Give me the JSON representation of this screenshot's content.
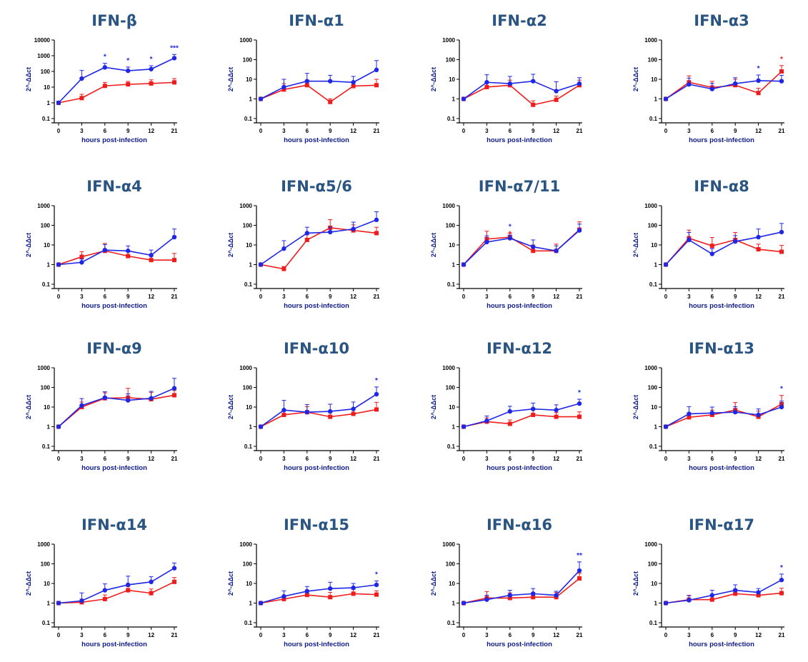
{
  "colors": {
    "blue": "#1f27e6",
    "red": "#f01c1c",
    "title": "#2a5582",
    "axis_label": "#0d1a8c"
  },
  "chart_data": [
    {
      "type": "line",
      "title": "IFN-β",
      "ylabel": "2^-ΔΔct",
      "xlabel": "hours post-infection",
      "x_ticks": [
        "0",
        "3",
        "6",
        "9",
        "12",
        "21"
      ],
      "y_ticks": [
        "0.1",
        "1",
        "10",
        "100",
        "1000",
        "10000"
      ],
      "ylim": [
        0.1,
        10000
      ],
      "yscale": "log",
      "series": [
        {
          "color": "blue",
          "values": [
            1,
            35,
            180,
            110,
            140,
            700
          ],
          "err": [
            null,
            80,
            150,
            80,
            90,
            500
          ]
        },
        {
          "color": "red",
          "values": [
            1,
            2,
            12,
            15,
            17,
            20
          ],
          "err": [
            null,
            1.5,
            8,
            8,
            12,
            15
          ]
        }
      ],
      "annotations": [
        {
          "x": "6",
          "text": "*",
          "color": "blue"
        },
        {
          "x": "9",
          "text": "*",
          "color": "blue"
        },
        {
          "x": "12",
          "text": "*",
          "color": "blue"
        },
        {
          "x": "21",
          "text": "***",
          "color": "blue"
        }
      ]
    },
    {
      "type": "line",
      "title": "IFN-α1",
      "ylabel": "2^-ΔΔct",
      "xlabel": "hours post-infection",
      "x_ticks": [
        "0",
        "3",
        "6",
        "9",
        "12",
        "21"
      ],
      "y_ticks": [
        "0.1",
        "1",
        "10",
        "100",
        "1000"
      ],
      "ylim": [
        0.1,
        1000
      ],
      "yscale": "log",
      "series": [
        {
          "color": "blue",
          "values": [
            1,
            4,
            8,
            8,
            7,
            30
          ],
          "err": [
            null,
            6,
            12,
            8,
            7,
            60
          ]
        },
        {
          "color": "red",
          "values": [
            1,
            3,
            5,
            0.7,
            4.5,
            5
          ],
          "err": [
            null,
            3,
            4,
            0.3,
            3,
            5
          ]
        }
      ],
      "annotations": []
    },
    {
      "type": "line",
      "title": "IFN-α2",
      "ylabel": "2^-ΔΔct",
      "xlabel": "hours post-infection",
      "x_ticks": [
        "0",
        "3",
        "6",
        "9",
        "12",
        "21"
      ],
      "y_ticks": [
        "0.1",
        "1",
        "10",
        "100",
        "1000"
      ],
      "ylim": [
        0.1,
        1000
      ],
      "yscale": "log",
      "series": [
        {
          "color": "blue",
          "values": [
            1,
            7,
            6,
            8,
            2.5,
            6
          ],
          "err": [
            null,
            10,
            8,
            10,
            5,
            6
          ]
        },
        {
          "color": "red",
          "values": [
            1,
            4,
            5,
            0.5,
            0.9,
            5
          ],
          "err": [
            null,
            3,
            4,
            0.3,
            0.5,
            4
          ]
        }
      ],
      "annotations": []
    },
    {
      "type": "line",
      "title": "IFN-α3",
      "ylabel": "2^-ΔΔct",
      "xlabel": "hours post-infection",
      "x_ticks": [
        "0",
        "3",
        "6",
        "9",
        "12",
        "21"
      ],
      "y_ticks": [
        "0.1",
        "1",
        "10",
        "100",
        "1000"
      ],
      "ylim": [
        0.1,
        1000
      ],
      "yscale": "log",
      "series": [
        {
          "color": "blue",
          "values": [
            1,
            5.5,
            3.2,
            6,
            8.5,
            8
          ],
          "err": [
            null,
            6,
            3,
            6,
            8,
            8
          ]
        },
        {
          "color": "red",
          "values": [
            1,
            7,
            3.8,
            5,
            2,
            25
          ],
          "err": [
            null,
            8,
            4,
            5,
            1.5,
            25
          ]
        }
      ],
      "annotations": [
        {
          "x": "12",
          "text": "*",
          "color": "blue"
        },
        {
          "x": "21",
          "text": "*",
          "color": "red"
        }
      ]
    },
    {
      "type": "line",
      "title": "IFN-α4",
      "ylabel": "2^-ΔΔct",
      "xlabel": "hours post-infection",
      "x_ticks": [
        "0",
        "3",
        "6",
        "9",
        "12",
        "21"
      ],
      "y_ticks": [
        "0.1",
        "1",
        "10",
        "100",
        "1000"
      ],
      "ylim": [
        0.1,
        1000
      ],
      "yscale": "log",
      "series": [
        {
          "color": "blue",
          "values": [
            1,
            1.3,
            5.5,
            5,
            3,
            25
          ],
          "err": [
            null,
            0.6,
            5,
            4,
            2.5,
            40
          ]
        },
        {
          "color": "red",
          "values": [
            1,
            2.5,
            5,
            2.7,
            1.7,
            1.7
          ],
          "err": [
            null,
            2,
            7,
            2,
            1,
            2
          ]
        }
      ],
      "annotations": []
    },
    {
      "type": "line",
      "title": "IFN-α5/6",
      "ylabel": "2^-ΔΔct",
      "xlabel": "hours post-infection",
      "x_ticks": [
        "0",
        "3",
        "6",
        "9",
        "12",
        "21"
      ],
      "y_ticks": [
        "0.1",
        "1",
        "10",
        "100",
        "1000"
      ],
      "ylim": [
        0.1,
        1000
      ],
      "yscale": "log",
      "series": [
        {
          "color": "blue",
          "values": [
            1,
            6.5,
            40,
            45,
            65,
            190
          ],
          "err": [
            null,
            10,
            40,
            35,
            80,
            300
          ]
        },
        {
          "color": "red",
          "values": [
            1,
            0.6,
            18,
            75,
            55,
            40
          ],
          "err": [
            null,
            0.2,
            15,
            120,
            50,
            40
          ]
        }
      ],
      "annotations": []
    },
    {
      "type": "line",
      "title": "IFN-α7/11",
      "ylabel": "2^-ΔΔct",
      "xlabel": "hours post-infection",
      "x_ticks": [
        "0",
        "3",
        "6",
        "9",
        "12",
        "21"
      ],
      "y_ticks": [
        "0.1",
        "1",
        "10",
        "100",
        "1000"
      ],
      "ylim": [
        0.1,
        1000
      ],
      "yscale": "log",
      "series": [
        {
          "color": "blue",
          "values": [
            1,
            14,
            22,
            8,
            5,
            55
          ],
          "err": [
            null,
            15,
            10,
            10,
            4,
            60
          ]
        },
        {
          "color": "red",
          "values": [
            1,
            20,
            25,
            5,
            5,
            60
          ],
          "err": [
            null,
            30,
            15,
            5,
            6,
            90
          ]
        }
      ],
      "annotations": [
        {
          "x": "6",
          "text": "*",
          "color": "blue"
        },
        {
          "x": "6",
          "text": "*",
          "color": "red"
        }
      ]
    },
    {
      "type": "line",
      "title": "IFN-α8",
      "ylabel": "2^-ΔΔct",
      "xlabel": "hours post-infection",
      "x_ticks": [
        "0",
        "3",
        "6",
        "9",
        "12",
        "21"
      ],
      "y_ticks": [
        "0.1",
        "1",
        "10",
        "100",
        "1000"
      ],
      "ylim": [
        0.1,
        1000
      ],
      "yscale": "log",
      "series": [
        {
          "color": "blue",
          "values": [
            1,
            18,
            3.5,
            15,
            25,
            45
          ],
          "err": [
            null,
            25,
            3,
            15,
            40,
            80
          ]
        },
        {
          "color": "red",
          "values": [
            1,
            22,
            9,
            18,
            6,
            4.5
          ],
          "err": [
            null,
            35,
            15,
            25,
            5,
            5
          ]
        }
      ],
      "annotations": []
    },
    {
      "type": "line",
      "title": "IFN-α9",
      "ylabel": "2^-ΔΔct",
      "xlabel": "hours post-infection",
      "x_ticks": [
        "0",
        "3",
        "6",
        "9",
        "12",
        "21"
      ],
      "y_ticks": [
        "0.1",
        "1",
        "10",
        "100",
        "1000"
      ],
      "ylim": [
        0.1,
        1000
      ],
      "yscale": "log",
      "series": [
        {
          "color": "blue",
          "values": [
            1,
            12,
            30,
            22,
            28,
            90
          ],
          "err": [
            null,
            15,
            30,
            25,
            35,
            200
          ]
        },
        {
          "color": "red",
          "values": [
            1,
            10,
            28,
            30,
            25,
            40
          ],
          "err": [
            null,
            8,
            25,
            60,
            30,
            30
          ]
        }
      ],
      "annotations": []
    },
    {
      "type": "line",
      "title": "IFN-α10",
      "ylabel": "2^-ΔΔct",
      "xlabel": "hours post-infection",
      "x_ticks": [
        "0",
        "3",
        "6",
        "9",
        "12",
        "21"
      ],
      "y_ticks": [
        "0.1",
        "1",
        "10",
        "100",
        "1000"
      ],
      "ylim": [
        0.1,
        1000
      ],
      "yscale": "log",
      "series": [
        {
          "color": "blue",
          "values": [
            1,
            7,
            5.5,
            6,
            8,
            45
          ],
          "err": [
            null,
            15,
            8,
            8,
            10,
            60
          ]
        },
        {
          "color": "red",
          "values": [
            1,
            4,
            5.5,
            3.2,
            4.5,
            7.5
          ],
          "err": [
            null,
            2.5,
            5,
            2,
            3,
            10
          ]
        }
      ],
      "annotations": [
        {
          "x": "21",
          "text": "*",
          "color": "blue"
        }
      ]
    },
    {
      "type": "line",
      "title": "IFN-α12",
      "ylabel": "2^-ΔΔct",
      "xlabel": "hours post-infection",
      "x_ticks": [
        "0",
        "3",
        "6",
        "9",
        "12",
        "21"
      ],
      "y_ticks": [
        "0.1",
        "1",
        "10",
        "100",
        "1000"
      ],
      "ylim": [
        0.1,
        1000
      ],
      "yscale": "log",
      "series": [
        {
          "color": "blue",
          "values": [
            1,
            2,
            6,
            8,
            7,
            15
          ],
          "err": [
            null,
            1.5,
            5,
            8,
            6,
            10
          ]
        },
        {
          "color": "red",
          "values": [
            1,
            1.8,
            1.4,
            4,
            3.2,
            3.2
          ],
          "err": [
            null,
            1,
            0.8,
            3,
            2,
            2.5
          ]
        }
      ],
      "annotations": [
        {
          "x": "21",
          "text": "*",
          "color": "blue"
        }
      ]
    },
    {
      "type": "line",
      "title": "IFN-α13",
      "ylabel": "2^-ΔΔct",
      "xlabel": "hours post-infection",
      "x_ticks": [
        "0",
        "3",
        "6",
        "9",
        "12",
        "21"
      ],
      "y_ticks": [
        "0.1",
        "1",
        "10",
        "100",
        "1000"
      ],
      "ylim": [
        0.1,
        1000
      ],
      "yscale": "log",
      "series": [
        {
          "color": "blue",
          "values": [
            1,
            4.5,
            5,
            5.5,
            4,
            10
          ],
          "err": [
            null,
            6,
            5,
            5,
            4,
            10
          ]
        },
        {
          "color": "red",
          "values": [
            1,
            3,
            4,
            7,
            3.2,
            14
          ],
          "err": [
            null,
            2,
            3,
            10,
            3,
            25
          ]
        }
      ],
      "annotations": [
        {
          "x": "21",
          "text": "*",
          "color": "blue"
        }
      ]
    },
    {
      "type": "line",
      "title": "IFN-α14",
      "ylabel": "2^-ΔΔct",
      "xlabel": "hours post-infection",
      "x_ticks": [
        "0",
        "3",
        "6",
        "9",
        "12",
        "21"
      ],
      "y_ticks": [
        "0.1",
        "1",
        "10",
        "100",
        "1000"
      ],
      "ylim": [
        0.1,
        1000
      ],
      "yscale": "log",
      "series": [
        {
          "color": "blue",
          "values": [
            1,
            1.3,
            4.5,
            8.5,
            12,
            60
          ],
          "err": [
            null,
            2,
            5,
            15,
            10,
            50
          ]
        },
        {
          "color": "red",
          "values": [
            1,
            1.1,
            1.6,
            4.5,
            3.2,
            12
          ],
          "err": [
            null,
            0.5,
            1,
            2.5,
            2,
            8
          ]
        }
      ],
      "annotations": []
    },
    {
      "type": "line",
      "title": "IFN-α15",
      "ylabel": "2^-ΔΔct",
      "xlabel": "hours post-infection",
      "x_ticks": [
        "0",
        "3",
        "6",
        "9",
        "12",
        "21"
      ],
      "y_ticks": [
        "0.1",
        "1",
        "10",
        "100",
        "1000"
      ],
      "ylim": [
        0.1,
        1000
      ],
      "yscale": "log",
      "series": [
        {
          "color": "blue",
          "values": [
            1,
            2.2,
            4,
            5.5,
            6,
            8.5
          ],
          "err": [
            null,
            2,
            3,
            6,
            4,
            5
          ]
        },
        {
          "color": "red",
          "values": [
            1,
            1.6,
            2.6,
            2,
            3,
            2.7
          ],
          "err": [
            null,
            0.8,
            2,
            1.5,
            2,
            1.5
          ]
        }
      ],
      "annotations": [
        {
          "x": "21",
          "text": "*",
          "color": "blue"
        }
      ]
    },
    {
      "type": "line",
      "title": "IFN-α16",
      "ylabel": "2^-ΔΔct",
      "xlabel": "hours post-infection",
      "x_ticks": [
        "0",
        "3",
        "6",
        "9",
        "12",
        "21"
      ],
      "y_ticks": [
        "0.1",
        "1",
        "10",
        "100",
        "1000"
      ],
      "ylim": [
        0.1,
        1000
      ],
      "yscale": "log",
      "series": [
        {
          "color": "blue",
          "values": [
            1,
            1.5,
            2.5,
            3,
            2.5,
            45
          ],
          "err": [
            null,
            1,
            2,
            2.5,
            1.5,
            80
          ]
        },
        {
          "color": "red",
          "values": [
            1,
            1.8,
            1.8,
            2,
            2,
            18
          ],
          "err": [
            null,
            2,
            1.5,
            1.5,
            1.5,
            15
          ]
        }
      ],
      "annotations": [
        {
          "x": "21",
          "text": "**",
          "color": "blue"
        }
      ]
    },
    {
      "type": "line",
      "title": "IFN-α17",
      "ylabel": "2^-ΔΔct",
      "xlabel": "hours post-infection",
      "x_ticks": [
        "0",
        "3",
        "6",
        "9",
        "12",
        "21"
      ],
      "y_ticks": [
        "0.1",
        "1",
        "10",
        "100",
        "1000"
      ],
      "ylim": [
        0.1,
        1000
      ],
      "yscale": "log",
      "series": [
        {
          "color": "blue",
          "values": [
            1,
            1.4,
            2.5,
            4.5,
            3.5,
            15
          ],
          "err": [
            null,
            1,
            2,
            4,
            2,
            15
          ]
        },
        {
          "color": "red",
          "values": [
            1,
            1.5,
            1.5,
            3,
            2.5,
            3.2
          ],
          "err": [
            null,
            1,
            1,
            2,
            1.5,
            2.5
          ]
        }
      ],
      "annotations": [
        {
          "x": "21",
          "text": "*",
          "color": "blue"
        }
      ]
    }
  ]
}
